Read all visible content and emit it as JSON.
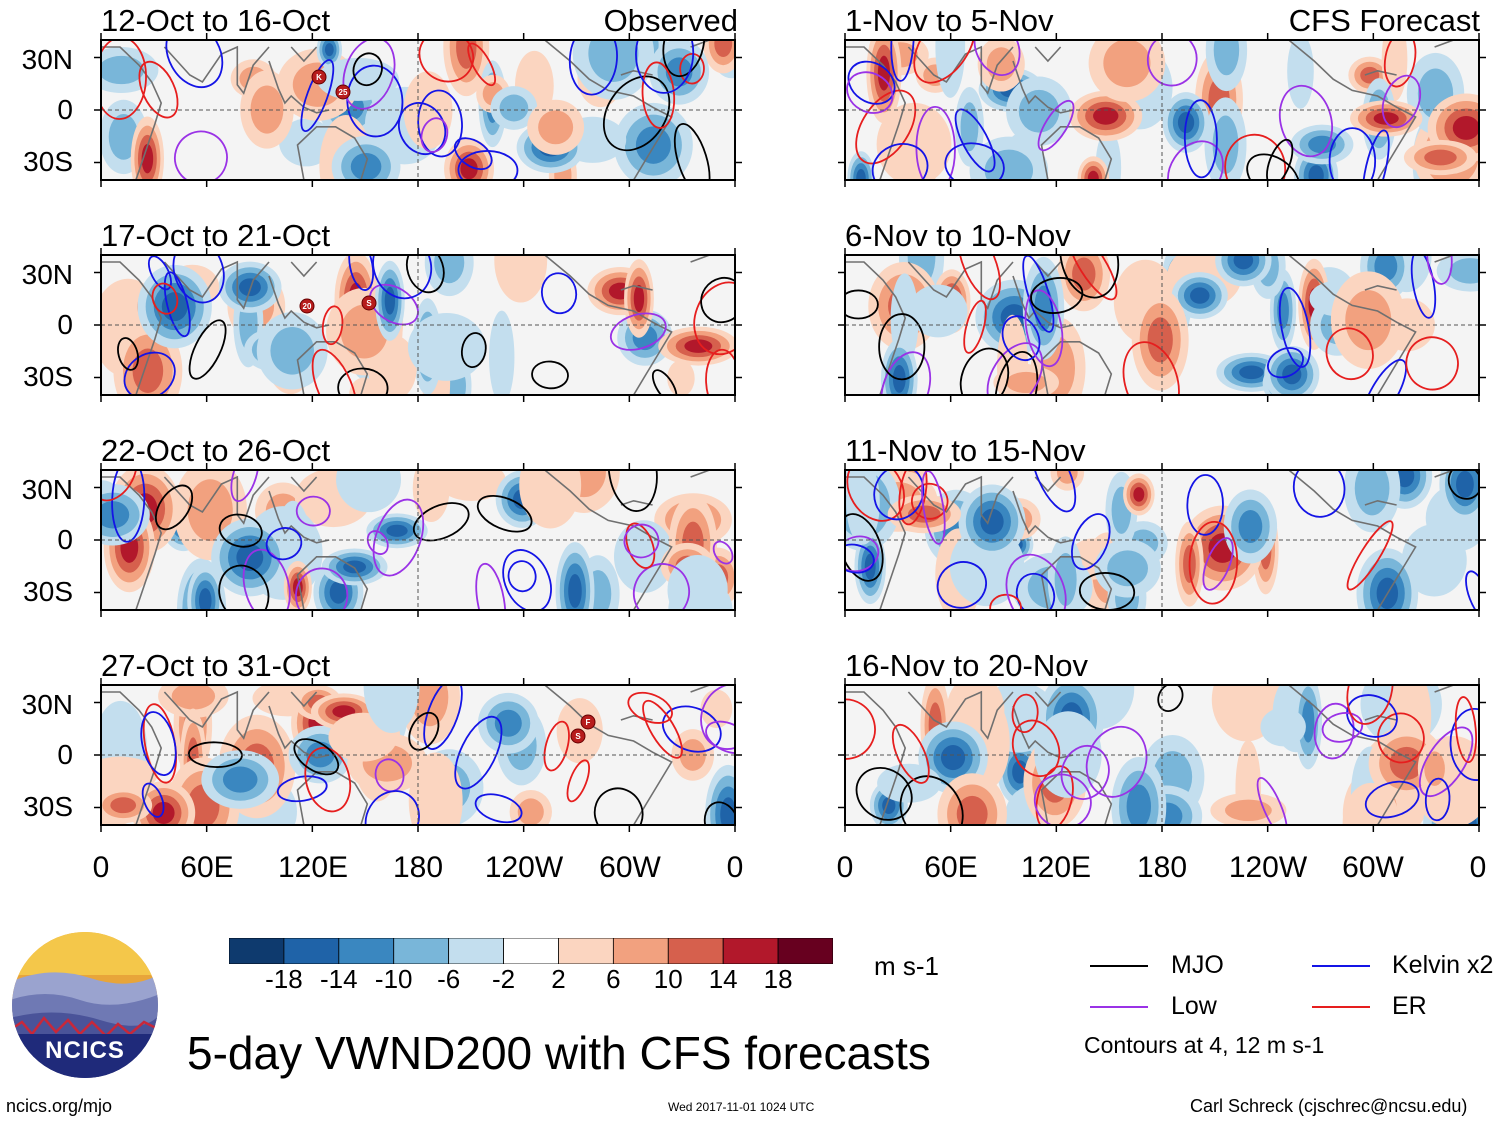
{
  "colors": {
    "mjo": "#000000",
    "kelvin": "#1414e6",
    "low": "#9a32e6",
    "er": "#e61e1e",
    "land_outline": "#707070"
  },
  "header": {
    "left_column_label": "Observed",
    "right_column_label": "CFS Forecast"
  },
  "panels": {
    "left": [
      {
        "title": "12-Oct to 16-Oct"
      },
      {
        "title": "17-Oct to 21-Oct"
      },
      {
        "title": "22-Oct to 26-Oct"
      },
      {
        "title": "27-Oct to 31-Oct"
      }
    ],
    "right": [
      {
        "title": "1-Nov to 5-Nov"
      },
      {
        "title": "6-Nov to 10-Nov"
      },
      {
        "title": "11-Nov to 15-Nov"
      },
      {
        "title": "16-Nov to 20-Nov"
      }
    ]
  },
  "storm_markers": {
    "p1": [
      "K",
      "25"
    ],
    "p2": [
      "20",
      "S"
    ],
    "p4": [
      "F",
      "S"
    ]
  },
  "chart_data": {
    "type": "heatmap",
    "variable": "VWND200",
    "units": "m s-1",
    "title": "5-day VWND200 with CFS forecasts",
    "y_tick_labels": [
      "30N",
      "0",
      "30S"
    ],
    "x_tick_labels": [
      "0",
      "60E",
      "120E",
      "180",
      "120W",
      "60W",
      "0"
    ],
    "x_range_deg": [
      0,
      360
    ],
    "y_range_deg": [
      -40,
      40
    ],
    "colorbar": {
      "ticks": [
        "-18",
        "-14",
        "-10",
        "-6",
        "-2",
        "2",
        "6",
        "10",
        "14",
        "18"
      ],
      "colors": [
        "#0e3a6e",
        "#1f63a8",
        "#3a87c0",
        "#79b6d9",
        "#c3deee",
        "#ffffff",
        "#fbd5c0",
        "#f2a17f",
        "#d6604d",
        "#b2182b",
        "#67001f"
      ]
    },
    "legend": [
      {
        "key": "mjo",
        "label": "MJO"
      },
      {
        "key": "kelvin",
        "label": "Kelvin x2"
      },
      {
        "key": "low",
        "label": "Low"
      },
      {
        "key": "er",
        "label": "ER"
      }
    ],
    "contour_note": "Contours at 4, 12 m s-1"
  },
  "branding": {
    "logo_text": "NCICS",
    "site": "ncics.org/mjo",
    "timestamp": "Wed 2017-11-01 1024 UTC",
    "author": "Carl Schreck (cjschrec@ncsu.edu)"
  }
}
